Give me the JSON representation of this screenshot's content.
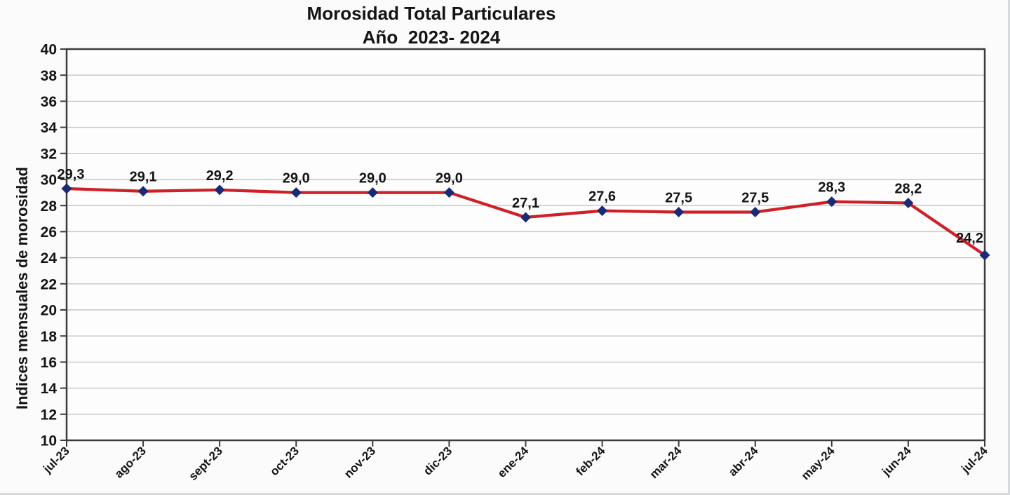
{
  "page": {
    "background": "#fbfbfb"
  },
  "chart_data": {
    "type": "line",
    "title": "Morosidad Total Particulares",
    "subtitle": "Año  2023- 2024",
    "ylabel": "Indices mensuales de morosidad",
    "xlabel": "",
    "ylim": [
      10,
      40
    ],
    "ytick_step": 2,
    "ytick_labels": [
      "40",
      "38",
      "36",
      "34",
      "32",
      "30",
      "28",
      "26",
      "24",
      "22",
      "20",
      "18",
      "16",
      "14",
      "12",
      "10"
    ],
    "grid": true,
    "legend": "none",
    "categories": [
      "jul-23",
      "ago-23",
      "sept-23",
      "oct-23",
      "nov-23",
      "dic-23",
      "ene-24",
      "feb-24",
      "mar-24",
      "abr-24",
      "may-24",
      "jun-24",
      "jul-24"
    ],
    "values": [
      29.3,
      29.1,
      29.2,
      29.0,
      29.0,
      29.0,
      27.1,
      27.6,
      27.5,
      27.5,
      28.3,
      28.2,
      24.2
    ],
    "value_labels": [
      "29,3",
      "29,1",
      "29,2",
      "29,0",
      "29,0",
      "29,0",
      "27,1",
      "27,6",
      "27,5",
      "27,5",
      "28,3",
      "28,2",
      "24,2"
    ],
    "colors": {
      "line": "#cf2027",
      "marker": "#1b2a75",
      "grid": "#c5c5c5",
      "frame": "#3c3c3c",
      "text": "#141414",
      "plot_fill": "#fdfdfd"
    }
  }
}
